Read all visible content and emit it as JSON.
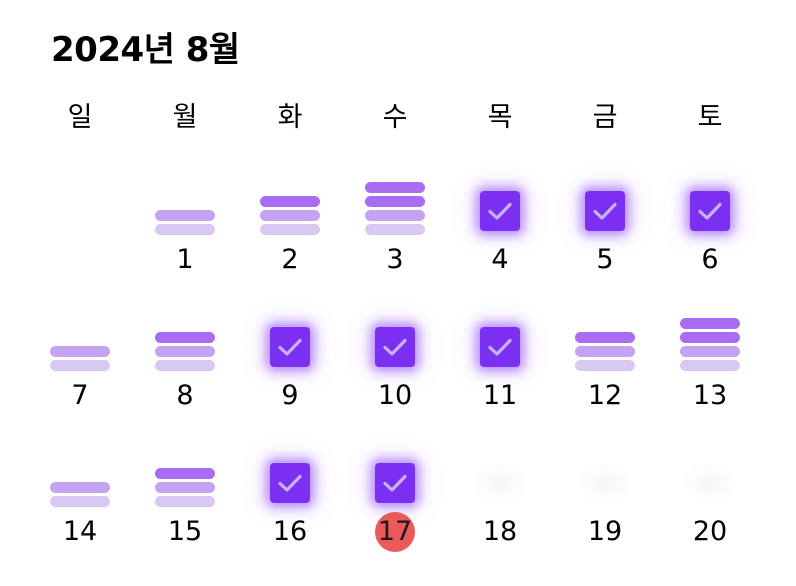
{
  "title": "2024년 8월",
  "weekdays": [
    "일",
    "월",
    "화",
    "수",
    "목",
    "금",
    "토"
  ],
  "colors": {
    "check": "#7b2ff0",
    "bar_dark": "#a86cf5",
    "bar_mid": "#c4a3f3",
    "bar_light": "#d9c8f0",
    "today": "#ea5a5a"
  },
  "today": 17,
  "days": [
    {
      "label": "",
      "col": 0,
      "status": "empty",
      "level": 0
    },
    {
      "label": "1",
      "col": 1,
      "status": "bars",
      "level": 2
    },
    {
      "label": "2",
      "col": 2,
      "status": "bars",
      "level": 3
    },
    {
      "label": "3",
      "col": 3,
      "status": "bars",
      "level": 4
    },
    {
      "label": "4",
      "col": 4,
      "status": "check",
      "level": 0
    },
    {
      "label": "5",
      "col": 5,
      "status": "check",
      "level": 0
    },
    {
      "label": "6",
      "col": 6,
      "status": "check",
      "level": 0
    },
    {
      "label": "7",
      "col": 0,
      "status": "bars",
      "level": 2
    },
    {
      "label": "8",
      "col": 1,
      "status": "bars",
      "level": 3
    },
    {
      "label": "9",
      "col": 2,
      "status": "check",
      "level": 0
    },
    {
      "label": "10",
      "col": 3,
      "status": "check",
      "level": 0
    },
    {
      "label": "11",
      "col": 4,
      "status": "check",
      "level": 0
    },
    {
      "label": "12",
      "col": 5,
      "status": "bars",
      "level": 3
    },
    {
      "label": "13",
      "col": 6,
      "status": "bars",
      "level": 4
    },
    {
      "label": "14",
      "col": 0,
      "status": "bars",
      "level": 2
    },
    {
      "label": "15",
      "col": 1,
      "status": "bars",
      "level": 3
    },
    {
      "label": "16",
      "col": 2,
      "status": "check",
      "level": 0
    },
    {
      "label": "17",
      "col": 3,
      "status": "check",
      "level": 0
    },
    {
      "label": "18",
      "col": 4,
      "status": "future",
      "level": 0
    },
    {
      "label": "19",
      "col": 5,
      "status": "future",
      "level": 0
    },
    {
      "label": "20",
      "col": 6,
      "status": "future",
      "level": 0
    }
  ]
}
